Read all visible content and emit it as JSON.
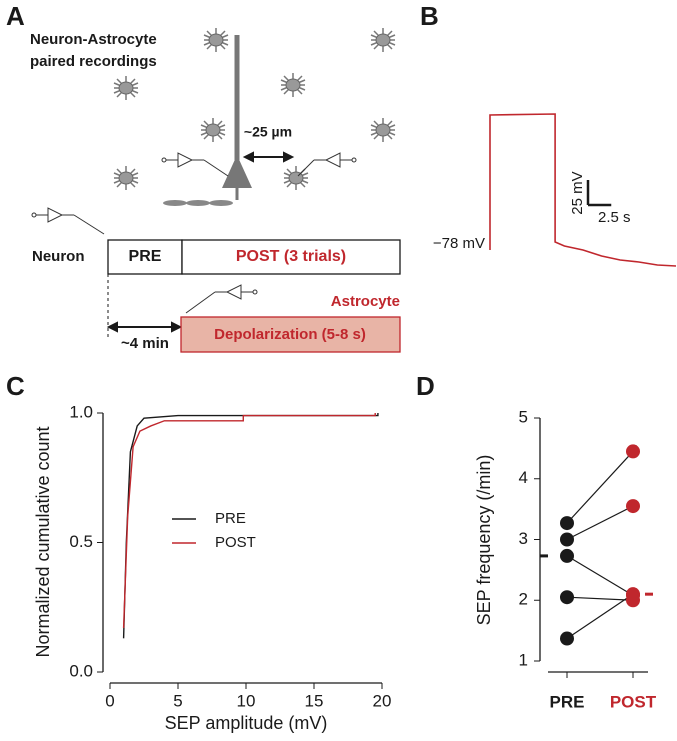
{
  "panel_labels": [
    "A",
    "B",
    "C",
    "D"
  ],
  "diagram": {
    "title_lines": [
      "Neuron-Astrocyte",
      "paired recordings"
    ],
    "distance": "~25 µm",
    "neuron": "Neuron",
    "pre": "PRE",
    "post": "POST (3 trials)",
    "astrocyte": "Astrocyte",
    "depolarization": "Depolarization (5-8 s)",
    "delay": "~4 min"
  },
  "chart_data": [
    {
      "type": "trace",
      "color": "#c0272d",
      "x": [
        0,
        0,
        7,
        7,
        8,
        10,
        12,
        14,
        16,
        18,
        20
      ],
      "values": [
        -78,
        57,
        58,
        -70,
        -74,
        -78,
        -84,
        -88,
        -90,
        -93,
        -94
      ],
      "baseline": -78,
      "baseline_label": "−78 mV",
      "scalebar": {
        "y": 25,
        "y_label": "25 mV",
        "x": 2.5,
        "x_label": "2.5 s"
      }
    },
    {
      "type": "line",
      "xlabel": "SEP amplitude (mV)",
      "ylabel": "Normalized cumulative count",
      "xlim": [
        0,
        20
      ],
      "xticks": [
        0,
        5,
        10,
        15,
        20
      ],
      "ylim": [
        0,
        1
      ],
      "yticks": [
        {
          "value": 0,
          "label": "0.0"
        },
        {
          "value": 0.5,
          "label": "0.5"
        },
        {
          "value": 1,
          "label": "1.0"
        }
      ],
      "series": [
        {
          "name": "PRE",
          "color": "#1a1a1a",
          "x": [
            1.0,
            1.2,
            1.5,
            2.0,
            2.5,
            5,
            10,
            15,
            19.7,
            19.7
          ],
          "values": [
            0.13,
            0.5,
            0.85,
            0.95,
            0.98,
            0.99,
            0.99,
            0.99,
            0.99,
            1.0
          ]
        },
        {
          "name": "POST",
          "color": "#c0272d",
          "x": [
            1.0,
            1.3,
            1.7,
            2.2,
            3,
            4,
            9.8,
            9.8,
            19.5,
            19.5
          ],
          "values": [
            0.17,
            0.6,
            0.87,
            0.93,
            0.95,
            0.97,
            0.97,
            0.99,
            0.99,
            1.0
          ]
        }
      ]
    },
    {
      "type": "paired",
      "ylabel": "SEP frequency (/min)",
      "categories": [
        "PRE",
        "POST"
      ],
      "colors": [
        "#1a1a1a",
        "#c0272d"
      ],
      "ylim": [
        1,
        5
      ],
      "yticks": [
        1,
        2,
        3,
        4,
        5
      ],
      "values": [
        [
          3.27,
          4.45
        ],
        [
          3.0,
          3.55
        ],
        [
          2.73,
          2.08
        ],
        [
          2.05,
          2.0
        ],
        [
          1.37,
          2.1
        ]
      ],
      "means": [
        2.73,
        2.1
      ]
    }
  ]
}
